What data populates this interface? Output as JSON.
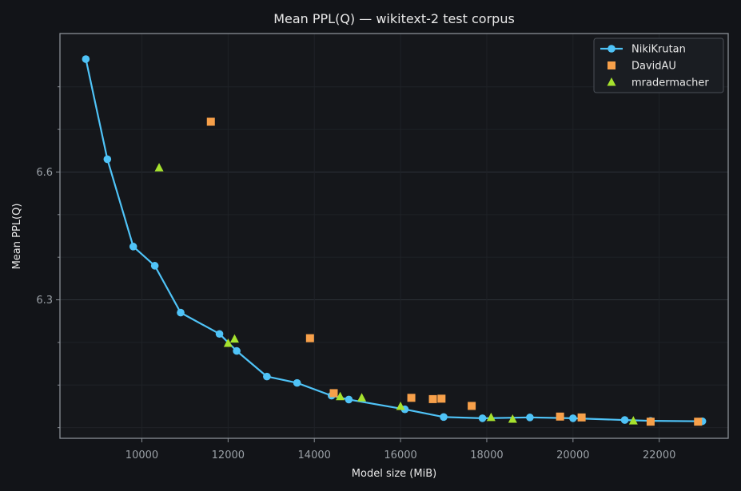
{
  "chart_data": {
    "type": "scatter",
    "title": "Mean PPL(Q) — wikitext-2 test corpus",
    "xlabel": "Model size (MiB)",
    "ylabel": "Mean PPL(Q)",
    "xlim": [
      8100,
      23600
    ],
    "ylim": [
      5.975,
      6.925
    ],
    "x_ticks": [
      10000,
      12000,
      14000,
      16000,
      18000,
      20000,
      22000
    ],
    "x_tick_labels": [
      "10000",
      "12000",
      "14000",
      "16000",
      "18000",
      "20000",
      "22000"
    ],
    "y_ticks": [
      6.3,
      6.6
    ],
    "y_tick_labels": [
      "6.3",
      "6.6"
    ],
    "y_minor_ticks": [
      6.0,
      6.1,
      6.2,
      6.4,
      6.5,
      6.7,
      6.8
    ],
    "grid": true,
    "legend_position": "top-right",
    "series": [
      {
        "name": "NikiKrutan",
        "marker": "circle",
        "line": true,
        "color": "#4fc3f7",
        "x": [
          8700,
          9200,
          9800,
          10300,
          10900,
          11800,
          12200,
          12900,
          13600,
          14400,
          14800,
          16100,
          17000,
          17900,
          19000,
          20000,
          21200,
          21800,
          23000
        ],
        "y": [
          6.865,
          6.63,
          6.425,
          6.38,
          6.27,
          6.22,
          6.18,
          6.12,
          6.105,
          6.075,
          6.066,
          6.043,
          6.025,
          6.022,
          6.024,
          6.022,
          6.018,
          6.016,
          6.015
        ]
      },
      {
        "name": "DavidAU",
        "marker": "square",
        "line": false,
        "color": "#f7a04a",
        "x": [
          11600,
          13900,
          14450,
          16250,
          16750,
          16950,
          17650,
          19700,
          20200,
          21800,
          22900
        ],
        "y": [
          6.718,
          6.21,
          6.081,
          6.07,
          6.067,
          6.068,
          6.051,
          6.026,
          6.024,
          6.014,
          6.014
        ]
      },
      {
        "name": "mradermacher",
        "marker": "triangle",
        "line": false,
        "color": "#a6e22e",
        "x": [
          10400,
          12000,
          12150,
          14600,
          15100,
          16000,
          18100,
          18600,
          21400
        ],
        "y": [
          6.61,
          6.198,
          6.208,
          6.073,
          6.07,
          6.05,
          6.024,
          6.02,
          6.016
        ]
      }
    ]
  }
}
